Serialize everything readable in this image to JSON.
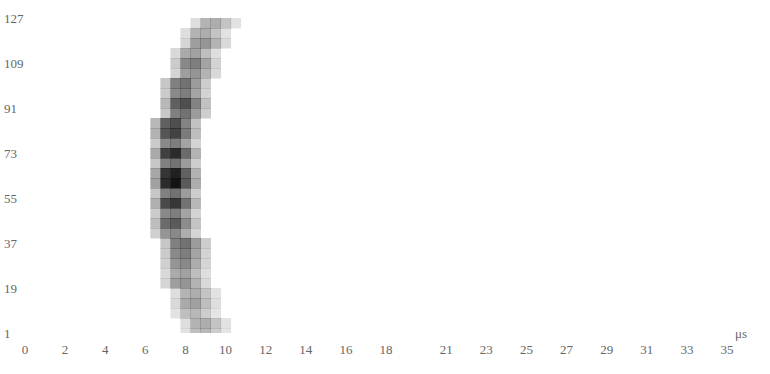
{
  "chart_data": {
    "type": "heatmap",
    "x_label": "μs",
    "xlim": [
      0,
      35
    ],
    "xticks": [
      0,
      2,
      4,
      6,
      8,
      10,
      12,
      14,
      16,
      18,
      21,
      23,
      25,
      27,
      29,
      31,
      33,
      35
    ],
    "ylim": [
      1,
      127
    ],
    "yticks": [
      1,
      19,
      37,
      55,
      73,
      91,
      109,
      127
    ],
    "grid": false,
    "color": "#141414",
    "cells": [
      [
        8.0,
        1,
        0.12
      ],
      [
        8.5,
        1,
        0.27
      ],
      [
        9.0,
        1,
        0.3
      ],
      [
        9.5,
        1,
        0.21
      ],
      [
        10.0,
        1,
        0.11
      ],
      [
        8.0,
        5,
        0.14
      ],
      [
        8.5,
        5,
        0.32
      ],
      [
        9.0,
        5,
        0.35
      ],
      [
        9.5,
        5,
        0.25
      ],
      [
        10.0,
        5,
        0.12
      ],
      [
        7.5,
        9,
        0.12
      ],
      [
        8.0,
        9,
        0.27
      ],
      [
        8.5,
        9,
        0.3
      ],
      [
        9.0,
        9,
        0.21
      ],
      [
        9.5,
        9,
        0.11
      ],
      [
        7.5,
        13,
        0.16
      ],
      [
        8.0,
        13,
        0.36
      ],
      [
        8.5,
        13,
        0.4
      ],
      [
        9.0,
        13,
        0.28
      ],
      [
        9.5,
        13,
        0.14
      ],
      [
        7.5,
        17,
        0.14
      ],
      [
        8.0,
        17,
        0.32
      ],
      [
        8.5,
        17,
        0.35
      ],
      [
        9.0,
        17,
        0.25
      ],
      [
        9.5,
        17,
        0.12
      ],
      [
        7.0,
        21,
        0.18
      ],
      [
        7.5,
        21,
        0.41
      ],
      [
        8.0,
        21,
        0.45
      ],
      [
        8.5,
        21,
        0.32
      ],
      [
        9.0,
        21,
        0.16
      ],
      [
        7.0,
        25,
        0.16
      ],
      [
        7.5,
        25,
        0.36
      ],
      [
        8.0,
        25,
        0.4
      ],
      [
        8.5,
        25,
        0.28
      ],
      [
        9.0,
        25,
        0.14
      ],
      [
        7.0,
        29,
        0.2
      ],
      [
        7.5,
        29,
        0.45
      ],
      [
        8.0,
        29,
        0.5
      ],
      [
        8.5,
        29,
        0.35
      ],
      [
        9.0,
        29,
        0.18
      ],
      [
        7.0,
        33,
        0.22
      ],
      [
        7.5,
        33,
        0.5
      ],
      [
        8.0,
        33,
        0.55
      ],
      [
        8.5,
        33,
        0.39
      ],
      [
        9.0,
        33,
        0.19
      ],
      [
        7.0,
        37,
        0.24
      ],
      [
        7.5,
        37,
        0.54
      ],
      [
        8.0,
        37,
        0.6
      ],
      [
        8.5,
        37,
        0.42
      ],
      [
        9.0,
        37,
        0.21
      ],
      [
        6.5,
        41,
        0.2
      ],
      [
        7.0,
        41,
        0.45
      ],
      [
        7.5,
        41,
        0.5
      ],
      [
        8.0,
        41,
        0.35
      ],
      [
        8.5,
        41,
        0.18
      ],
      [
        6.5,
        45,
        0.28
      ],
      [
        7.0,
        45,
        0.63
      ],
      [
        7.5,
        45,
        0.7
      ],
      [
        8.0,
        45,
        0.49
      ],
      [
        8.5,
        45,
        0.25
      ],
      [
        6.5,
        49,
        0.22
      ],
      [
        7.0,
        49,
        0.5
      ],
      [
        7.5,
        49,
        0.55
      ],
      [
        8.0,
        49,
        0.39
      ],
      [
        8.5,
        49,
        0.19
      ],
      [
        6.5,
        53,
        0.34
      ],
      [
        7.0,
        53,
        0.77
      ],
      [
        7.5,
        53,
        0.85
      ],
      [
        8.0,
        53,
        0.6
      ],
      [
        8.5,
        53,
        0.3
      ],
      [
        6.5,
        57,
        0.24
      ],
      [
        7.0,
        57,
        0.54
      ],
      [
        7.5,
        57,
        0.6
      ],
      [
        8.0,
        57,
        0.42
      ],
      [
        8.5,
        57,
        0.21
      ],
      [
        6.5,
        61,
        0.4
      ],
      [
        7.0,
        61,
        0.9
      ],
      [
        7.5,
        61,
        1
      ],
      [
        8.0,
        61,
        0.7
      ],
      [
        8.5,
        61,
        0.35
      ],
      [
        6.5,
        65,
        0.38
      ],
      [
        7.0,
        65,
        0.86
      ],
      [
        7.5,
        65,
        0.95
      ],
      [
        8.0,
        65,
        0.67
      ],
      [
        8.5,
        65,
        0.33
      ],
      [
        6.5,
        69,
        0.24
      ],
      [
        7.0,
        69,
        0.54
      ],
      [
        7.5,
        69,
        0.6
      ],
      [
        8.0,
        69,
        0.42
      ],
      [
        8.5,
        69,
        0.21
      ],
      [
        6.5,
        73,
        0.36
      ],
      [
        7.0,
        73,
        0.81
      ],
      [
        7.5,
        73,
        0.9
      ],
      [
        8.0,
        73,
        0.63
      ],
      [
        8.5,
        73,
        0.32
      ],
      [
        6.5,
        77,
        0.22
      ],
      [
        7.0,
        77,
        0.5
      ],
      [
        7.5,
        77,
        0.55
      ],
      [
        8.0,
        77,
        0.39
      ],
      [
        8.5,
        77,
        0.19
      ],
      [
        6.5,
        81,
        0.32
      ],
      [
        7.0,
        81,
        0.72
      ],
      [
        7.5,
        81,
        0.8
      ],
      [
        8.0,
        81,
        0.56
      ],
      [
        8.5,
        81,
        0.28
      ],
      [
        6.5,
        85,
        0.3
      ],
      [
        7.0,
        85,
        0.68
      ],
      [
        7.5,
        85,
        0.75
      ],
      [
        8.0,
        85,
        0.53
      ],
      [
        8.5,
        85,
        0.26
      ],
      [
        7.0,
        89,
        0.24
      ],
      [
        7.5,
        89,
        0.54
      ],
      [
        8.0,
        89,
        0.6
      ],
      [
        8.5,
        89,
        0.42
      ],
      [
        9.0,
        89,
        0.21
      ],
      [
        7.0,
        93,
        0.3
      ],
      [
        7.5,
        93,
        0.68
      ],
      [
        8.0,
        93,
        0.75
      ],
      [
        8.5,
        93,
        0.53
      ],
      [
        9.0,
        93,
        0.26
      ],
      [
        7.0,
        97,
        0.22
      ],
      [
        7.5,
        97,
        0.5
      ],
      [
        8.0,
        97,
        0.55
      ],
      [
        8.5,
        97,
        0.39
      ],
      [
        9.0,
        97,
        0.19
      ],
      [
        7.0,
        101,
        0.24
      ],
      [
        7.5,
        101,
        0.54
      ],
      [
        8.0,
        101,
        0.6
      ],
      [
        8.5,
        101,
        0.42
      ],
      [
        9.0,
        101,
        0.21
      ],
      [
        7.5,
        105,
        0.18
      ],
      [
        8.0,
        105,
        0.41
      ],
      [
        8.5,
        105,
        0.45
      ],
      [
        9.0,
        105,
        0.32
      ],
      [
        9.5,
        105,
        0.16
      ],
      [
        7.5,
        109,
        0.22
      ],
      [
        8.0,
        109,
        0.5
      ],
      [
        8.5,
        109,
        0.55
      ],
      [
        9.0,
        109,
        0.39
      ],
      [
        9.5,
        109,
        0.19
      ],
      [
        7.5,
        113,
        0.16
      ],
      [
        8.0,
        113,
        0.36
      ],
      [
        8.5,
        113,
        0.4
      ],
      [
        9.0,
        113,
        0.28
      ],
      [
        9.5,
        113,
        0.14
      ],
      [
        8.0,
        117,
        0.18
      ],
      [
        8.5,
        117,
        0.41
      ],
      [
        9.0,
        117,
        0.45
      ],
      [
        9.5,
        117,
        0.32
      ],
      [
        10.0,
        117,
        0.16
      ],
      [
        8.0,
        121,
        0.14
      ],
      [
        8.5,
        121,
        0.32
      ],
      [
        9.0,
        121,
        0.35
      ],
      [
        9.5,
        121,
        0.25
      ],
      [
        10.0,
        121,
        0.12
      ],
      [
        8.5,
        125,
        0.14
      ],
      [
        9.0,
        125,
        0.32
      ],
      [
        9.5,
        125,
        0.35
      ],
      [
        10.0,
        125,
        0.25
      ],
      [
        10.5,
        125,
        0.12
      ]
    ]
  }
}
